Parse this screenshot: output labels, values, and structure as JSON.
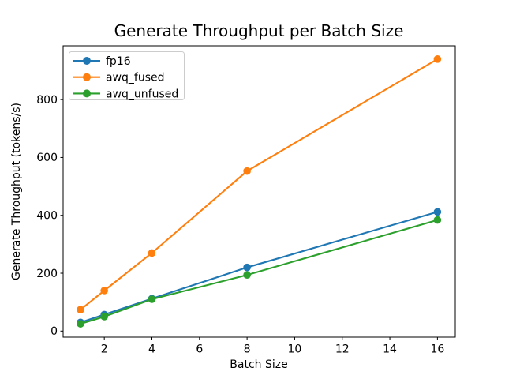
{
  "chart_data": {
    "type": "line",
    "title": "Generate Throughput per Batch Size",
    "xlabel": "Batch Size",
    "ylabel": "Generate Throughput (tokens/s)",
    "x": [
      1,
      2,
      4,
      8,
      16
    ],
    "series": [
      {
        "name": "fp16",
        "color": "#1f77b4",
        "values": [
          30,
          57,
          112,
          220,
          412
        ]
      },
      {
        "name": "awq_fused",
        "color": "#ff7f0e",
        "values": [
          74,
          140,
          270,
          553,
          940
        ]
      },
      {
        "name": "awq_unfused",
        "color": "#2ca02c",
        "values": [
          25,
          50,
          110,
          194,
          384
        ]
      }
    ],
    "xticks": [
      2,
      4,
      6,
      8,
      10,
      12,
      14,
      16
    ],
    "yticks": [
      0,
      200,
      400,
      600,
      800
    ],
    "xlim": [
      0.27,
      16.75
    ],
    "ylim": [
      -21,
      986
    ],
    "grid": false,
    "legend_position": "upper left",
    "marker": "o",
    "colors": {
      "spine": "#000000",
      "legend_border": "#cccccc",
      "background": "#ffffff"
    }
  }
}
